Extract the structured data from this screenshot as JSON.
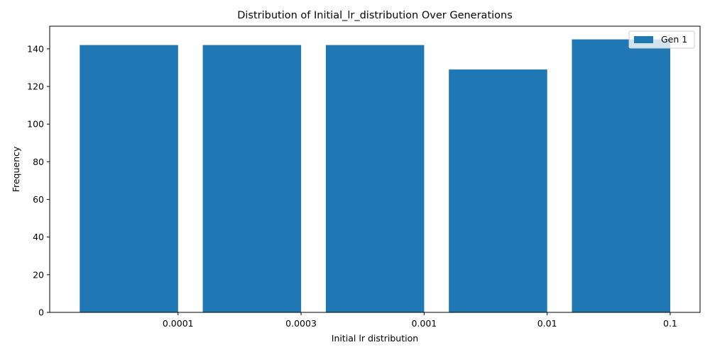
{
  "chart_data": {
    "type": "bar",
    "title": "Distribution of Initial_lr_distribution Over Generations",
    "xlabel": "Initial lr distribution",
    "ylabel": "Frequency",
    "categories": [
      "0.0001",
      "0.0003",
      "0.001",
      "0.01",
      "0.1"
    ],
    "series": [
      {
        "name": "Gen 1",
        "values": [
          142,
          142,
          142,
          129,
          145
        ]
      }
    ],
    "ylim": [
      0,
      152
    ],
    "yticks": [
      0,
      20,
      40,
      60,
      80,
      100,
      120,
      140
    ],
    "grid": false,
    "legend": "top-right",
    "colors": {
      "bar": "#1f77b4"
    }
  }
}
